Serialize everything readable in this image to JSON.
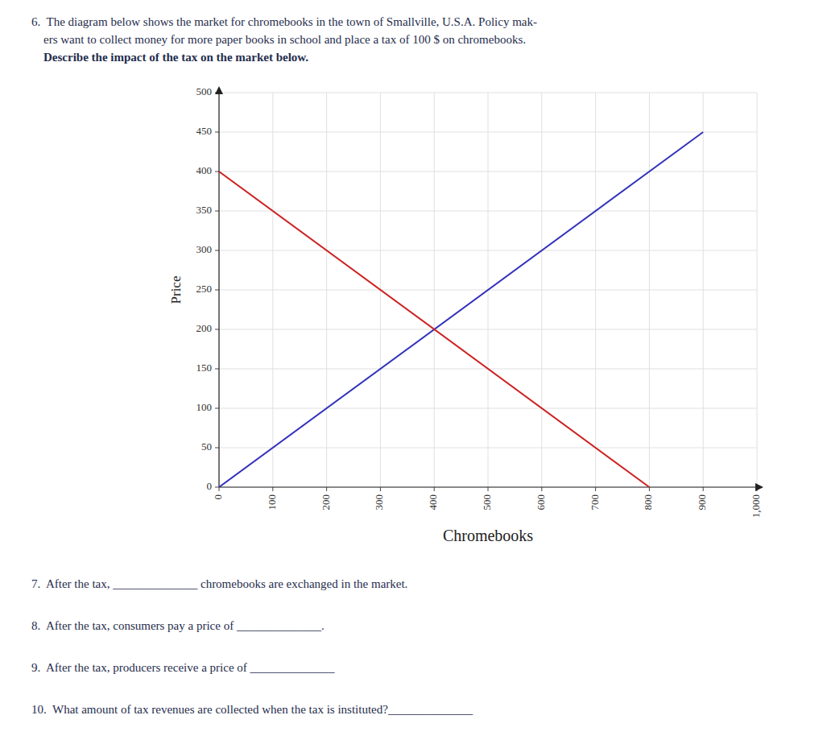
{
  "chart_data": {
    "type": "line",
    "title": [
      "6.  The diagram below shows the market for chromebooks in the town of Smallville, U.S.A. Policy mak-",
      "    ers want to collect money for more paper books in school and place a tax of 100 $ on chromebooks.",
      "    Describe the impact of the tax on the market below."
    ],
    "annotations": [
      "7.  After the tax, ______________ chromebooks are exchanged in the market.",
      "8.  After the tax, consumers pay a price of ______________.",
      "9.  After the tax, producers receive a price of ______________",
      "10.  What amount of tax revenues are collected when the tax is instituted?______________"
    ],
    "x_label": "Chromebooks",
    "y_label": "Price",
    "series": [
      {
        "color": "#3333bb",
        "x": [
          0,
          900
        ],
        "values": [
          0,
          450
        ]
      },
      {
        "color": "#cc2222",
        "x": [
          0,
          800
        ],
        "values": [
          400,
          0
        ]
      }
    ],
    "xlim": [
      0,
      1000
    ],
    "ylim": [
      0,
      500
    ],
    "xticks": [
      0,
      100,
      200,
      300,
      400,
      500,
      600,
      700,
      800,
      900,
      {
        "value": 1000,
        "label": "1,000"
      }
    ],
    "yticks": [
      0,
      50,
      100,
      150,
      200,
      250,
      300,
      350,
      400,
      450,
      500
    ],
    "grid": true
  }
}
